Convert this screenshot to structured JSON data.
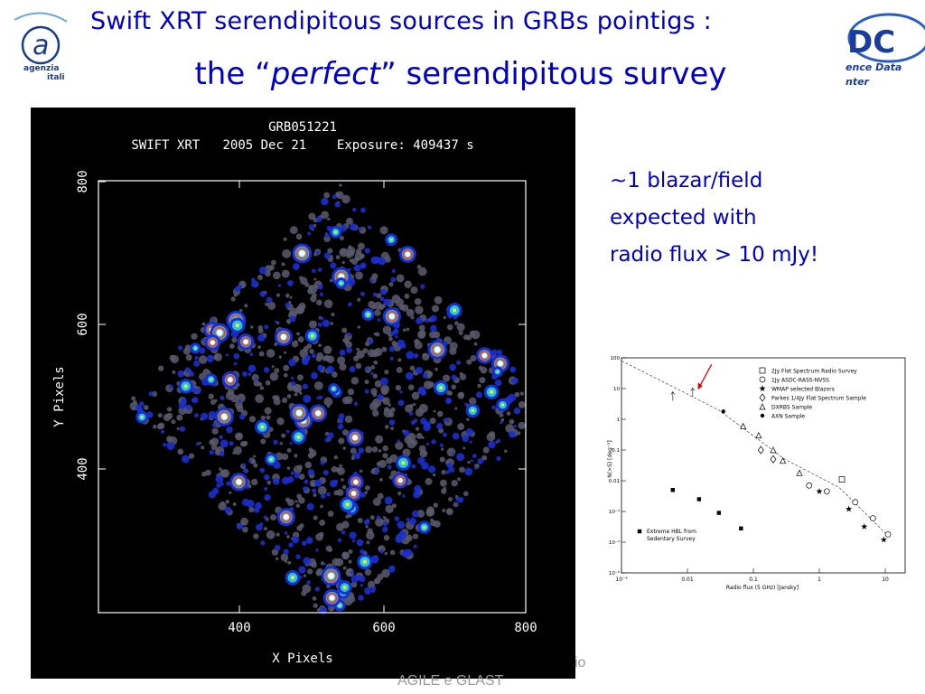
{
  "slide": {
    "title_line1": "Swift XRT serendipitous sources in GRBs pointigs :",
    "title_line2_prefix": "the “",
    "title_line2_emph": "perfect",
    "title_line2_suffix": "” serendipitous survey",
    "note_lines": [
      "~1 blazar/field",
      "expected with",
      "radio flux > 10 mJy!"
    ],
    "footer_line1": "io",
    "footer_line2": "AGILE e GLAST"
  },
  "logos": {
    "left_text": [
      "agenzia",
      "itali"
    ],
    "right_text": [
      "DC",
      "ence Data",
      "nter"
    ]
  },
  "xrt_image": {
    "header": [
      "GRB051221",
      "SWIFT XRT   2005 Dec 21    Exposure: 409437 s"
    ],
    "xlabel": "X Pixels",
    "ylabel": "Y Pixels",
    "xticks": [
      "400",
      "600",
      "800"
    ],
    "yticks": [
      "800",
      "600",
      "400"
    ],
    "colors": {
      "background": "#000000",
      "frame": "#ffffff",
      "noise": "#5a5a6e",
      "diffuse": "#1a2fd0",
      "source_mid": "#22c8d8",
      "source_ring": "#ff3a2a",
      "source_core": "#ffffff"
    }
  },
  "chart_data": {
    "type": "scatter",
    "xlabel": "Radio flux (5 GHz) [Jansky]",
    "ylabel": "N(>S) [deg⁻²]",
    "xscale": "log",
    "yscale": "log",
    "xlim": [
      0.001,
      20
    ],
    "ylim": [
      1e-05,
      100
    ],
    "xticks": [
      "10⁻³",
      "0.01",
      "0.1",
      "1",
      "10"
    ],
    "yticks": [
      "100",
      "10",
      "1",
      "0.1",
      "0.01",
      "10⁻³",
      "10⁻⁴",
      "10⁻⁵"
    ],
    "series": [
      {
        "name": "2Jy Flat Spectrum Radio Survey",
        "marker": "square-open",
        "points": [
          [
            2.2,
            0.011
          ]
        ]
      },
      {
        "name": "1Jy ASDC-RASS-NVSS",
        "marker": "circle-open",
        "points": [
          [
            0.7,
            0.007
          ],
          [
            1.3,
            0.0045
          ],
          [
            3.5,
            0.002
          ],
          [
            6.5,
            0.0006
          ],
          [
            11,
            0.00018
          ]
        ]
      },
      {
        "name": "WMAP selected Blazors",
        "marker": "star",
        "points": [
          [
            1.0,
            0.0045
          ],
          [
            2.8,
            0.0012
          ],
          [
            4.8,
            0.00032
          ],
          [
            9.5,
            0.00012
          ]
        ]
      },
      {
        "name": "Parkes 1/4Jy Flat Spectrum Sample",
        "marker": "diamond-open",
        "points": [
          [
            0.13,
            0.1
          ],
          [
            0.2,
            0.05
          ]
        ]
      },
      {
        "name": "DXRBS Sample",
        "marker": "triangle-open",
        "points": [
          [
            0.07,
            0.6
          ],
          [
            0.12,
            0.3
          ],
          [
            0.2,
            0.1
          ],
          [
            0.28,
            0.045
          ],
          [
            0.5,
            0.018
          ]
        ]
      },
      {
        "name": "AXN Sample",
        "marker": "dot",
        "points": [
          [
            0.035,
            1.8
          ]
        ]
      },
      {
        "name": "Extreme HBL from Sedentary Survey",
        "marker": "square-filled",
        "points": [
          [
            0.006,
            0.005
          ],
          [
            0.015,
            0.0025
          ],
          [
            0.03,
            0.0009
          ],
          [
            0.065,
            0.00028
          ]
        ]
      }
    ],
    "arrows_up": [
      [
        0.006,
        6
      ],
      [
        0.012,
        8
      ]
    ],
    "trend_line": [
      [
        0.001,
        80
      ],
      [
        0.03,
        2
      ],
      [
        0.3,
        0.05
      ],
      [
        2,
        0.006
      ],
      [
        10,
        0.0002
      ]
    ],
    "legend_position": "top-right",
    "annotation": {
      "type": "red-arrow",
      "target": [
        0.014,
        8
      ]
    }
  }
}
